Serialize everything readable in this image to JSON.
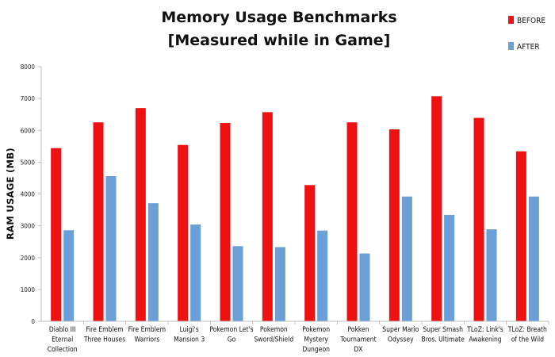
{
  "chart_data": {
    "type": "bar",
    "title_lines": [
      "Memory Usage Benchmarks",
      "[Measured while in Game]"
    ],
    "ylabel": "RAM USAGE (MB)",
    "xlabel": "",
    "ylim": [
      0,
      8000
    ],
    "yticks": [
      0,
      1000,
      2000,
      3000,
      4000,
      5000,
      6000,
      7000,
      8000
    ],
    "legend_position": "top-right",
    "grid": false,
    "categories": [
      [
        "Diablo III",
        "Eternal",
        "Collection"
      ],
      [
        "Fire Emblem",
        "Three Houses"
      ],
      [
        "Fire Emblem",
        "Warriors"
      ],
      [
        "Luigi's",
        "Mansion 3"
      ],
      [
        "Pokemon Let's",
        "Go"
      ],
      [
        "Pokemon",
        "Sword/Shield"
      ],
      [
        "Pokemon",
        "Mystery",
        "Dungeon"
      ],
      [
        "Pokken",
        "Tournament",
        "DX"
      ],
      [
        "Super Mario",
        "Odyssey"
      ],
      [
        "Super Smash",
        "Bros. Ultimate"
      ],
      [
        "TLoZ: Link's",
        "Awakening"
      ],
      [
        "TLoZ: Breath",
        "of the Wild"
      ]
    ],
    "series": [
      {
        "name": "BEFORE",
        "color": "#ee1111",
        "values": [
          5440,
          6250,
          6700,
          5540,
          6230,
          6570,
          4280,
          6250,
          6030,
          7070,
          6390,
          5340
        ]
      },
      {
        "name": "AFTER",
        "color": "#6a9fd8",
        "values": [
          2860,
          4560,
          3710,
          3040,
          2360,
          2330,
          2850,
          2130,
          3920,
          3340,
          2890,
          3920
        ]
      }
    ]
  }
}
